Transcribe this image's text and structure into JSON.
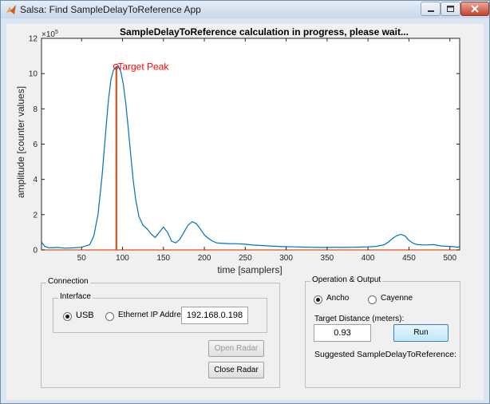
{
  "window": {
    "title": "Salsa: Find SampleDelayToReference App",
    "controls": [
      "minimize-icon",
      "maximize-icon",
      "close-icon"
    ]
  },
  "plot": {
    "title": "SampleDelayToReference calculation in progress, please wait...",
    "exponent_label": "×10",
    "exponent_power": "5",
    "annotation": "Target Peak"
  },
  "chart_data": {
    "type": "line",
    "title": "SampleDelayToReference calculation in progress, please wait...",
    "xlabel": "time [samplers]",
    "ylabel": "amplitude [counter values]",
    "xlim": [
      1,
      512
    ],
    "ylim": [
      0,
      1200000
    ],
    "y_scale_note": "×10^5",
    "xticks": [
      "50",
      "100",
      "150",
      "200",
      "250",
      "300",
      "350",
      "400",
      "450",
      "500"
    ],
    "yticks": [
      "0",
      "2",
      "4",
      "6",
      "8",
      "10",
      "12"
    ],
    "grid": false,
    "series": [
      {
        "color": "#0072bd",
        "x": [
          1,
          5,
          10,
          20,
          30,
          40,
          50,
          60,
          65,
          70,
          75,
          80,
          83,
          86,
          89,
          92,
          95,
          98,
          101,
          104,
          107,
          110,
          113,
          116,
          120,
          125,
          130,
          135,
          140,
          145,
          150,
          155,
          160,
          165,
          170,
          175,
          180,
          185,
          190,
          195,
          200,
          205,
          210,
          215,
          220,
          230,
          240,
          250,
          260,
          270,
          280,
          290,
          300,
          310,
          320,
          330,
          340,
          350,
          360,
          370,
          380,
          390,
          400,
          410,
          420,
          425,
          430,
          435,
          440,
          445,
          450,
          455,
          460,
          470,
          480,
          490,
          500,
          505,
          510,
          512
        ],
        "y": [
          45000,
          20000,
          12000,
          14000,
          10000,
          12000,
          15000,
          30000,
          80000,
          200000,
          420000,
          700000,
          860000,
          970000,
          1020000,
          1035000,
          1040000,
          1010000,
          940000,
          830000,
          690000,
          540000,
          400000,
          290000,
          190000,
          140000,
          120000,
          90000,
          70000,
          100000,
          130000,
          100000,
          50000,
          40000,
          60000,
          100000,
          140000,
          160000,
          150000,
          120000,
          85000,
          65000,
          50000,
          40000,
          38000,
          36000,
          35000,
          32000,
          27000,
          25000,
          22000,
          20000,
          18000,
          17000,
          16000,
          15000,
          14000,
          14000,
          15000,
          14000,
          15000,
          16000,
          17000,
          20000,
          30000,
          45000,
          65000,
          80000,
          88000,
          80000,
          55000,
          38000,
          30000,
          28000,
          30000,
          22000,
          20000,
          18000,
          15000,
          20000
        ]
      },
      {
        "color": "#d95319",
        "x": [
          1,
          92,
          92,
          93,
          93,
          512
        ],
        "y": [
          0,
          0,
          1040000,
          1040000,
          0,
          0
        ]
      }
    ],
    "markers": [
      {
        "x": 92,
        "y": 1040000,
        "label": "Target Peak",
        "color": "#ff0000"
      }
    ]
  },
  "connection": {
    "label": "Connection",
    "interface_label": "Interface",
    "usb_label": "USB",
    "usb_selected": true,
    "ethernet_label": "Ethernet IP Address",
    "ethernet_selected": false,
    "ip_value": "192.168.0.198",
    "open_radar": "Open Radar",
    "close_radar": "Close Radar"
  },
  "operation": {
    "label": "Operation & Output",
    "ancho_label": "Ancho",
    "ancho_selected": true,
    "cayenne_label": "Cayenne",
    "cayenne_selected": false,
    "distance_label": "Target Distance (meters):",
    "distance_value": "0.93",
    "run_label": "Run",
    "suggested_label": "Suggested SampleDelayToReference:"
  }
}
